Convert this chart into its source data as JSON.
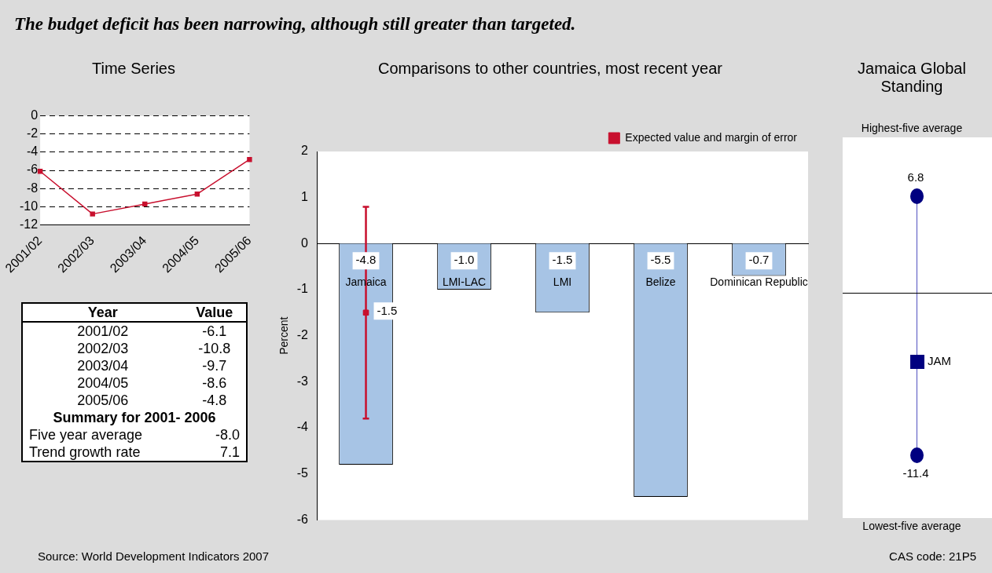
{
  "chart_data": [
    {
      "type": "other",
      "title": "The budget deficit has been narrowing, although still greater than targeted.",
      "annotations": [
        "Source: World Development Indicators 2007",
        "CAS code: 21P5"
      ]
    },
    {
      "type": "line",
      "title": "Time Series",
      "categories": [
        "2001/02",
        "2002/03",
        "2003/04",
        "2004/05",
        "2005/06"
      ],
      "series": [
        {
          "color": "#c8102e",
          "values": [
            -6.1,
            -10.8,
            -9.7,
            -8.6,
            -4.8
          ]
        }
      ],
      "ylim": [
        -12,
        0
      ],
      "yticks": [
        -12,
        -10,
        -8,
        -6,
        -4,
        -2,
        0
      ],
      "grid": "y",
      "marker": "square",
      "line_style": "solid"
    },
    {
      "type": "other",
      "annotations": [
        "Year",
        "Value",
        "2001/02",
        "-6.1",
        "2002/03",
        "-10.8",
        "2003/04",
        "-9.7",
        "2004/05",
        "-8.6",
        "2005/06",
        "-4.8",
        "Summary for 2001- 2006",
        "Five year average",
        "-8.0",
        "Trend growth rate",
        "7.1"
      ]
    },
    {
      "type": "bar",
      "title": "Comparisons to other countries, most recent year",
      "ylabel": "Percent",
      "categories": [
        "Jamaica",
        "LMI-LAC",
        "LMI",
        "Belize",
        "Dominican Republic"
      ],
      "series": [
        {
          "color": "#a7c4e5",
          "values": [
            -4.8,
            -1.0,
            -1.5,
            -5.5,
            -0.7
          ],
          "value_labels": [
            "-4.8",
            "-1.0",
            "-1.5",
            "-5.5",
            "-0.7"
          ]
        },
        {
          "type": "scatter",
          "name": "Expected value and margin of error",
          "color": "#c8102e",
          "x": [
            "Jamaica"
          ],
          "values": [
            -1.5
          ],
          "errors": [
            [
              -3.8,
              0.8
            ]
          ],
          "value_labels": [
            "-1.5"
          ]
        }
      ],
      "ylim": [
        -6,
        2
      ],
      "yticks": [
        -6,
        -5,
        -4,
        -3,
        -2,
        -1,
        0,
        1,
        2
      ],
      "legend": "top right",
      "marker": "square"
    },
    {
      "type": "other",
      "title": "Jamaica Global Standing",
      "annotations": [
        "Highest-five average",
        "6.8",
        "JAM",
        "-11.4",
        "Lowest-five average"
      ]
    }
  ]
}
